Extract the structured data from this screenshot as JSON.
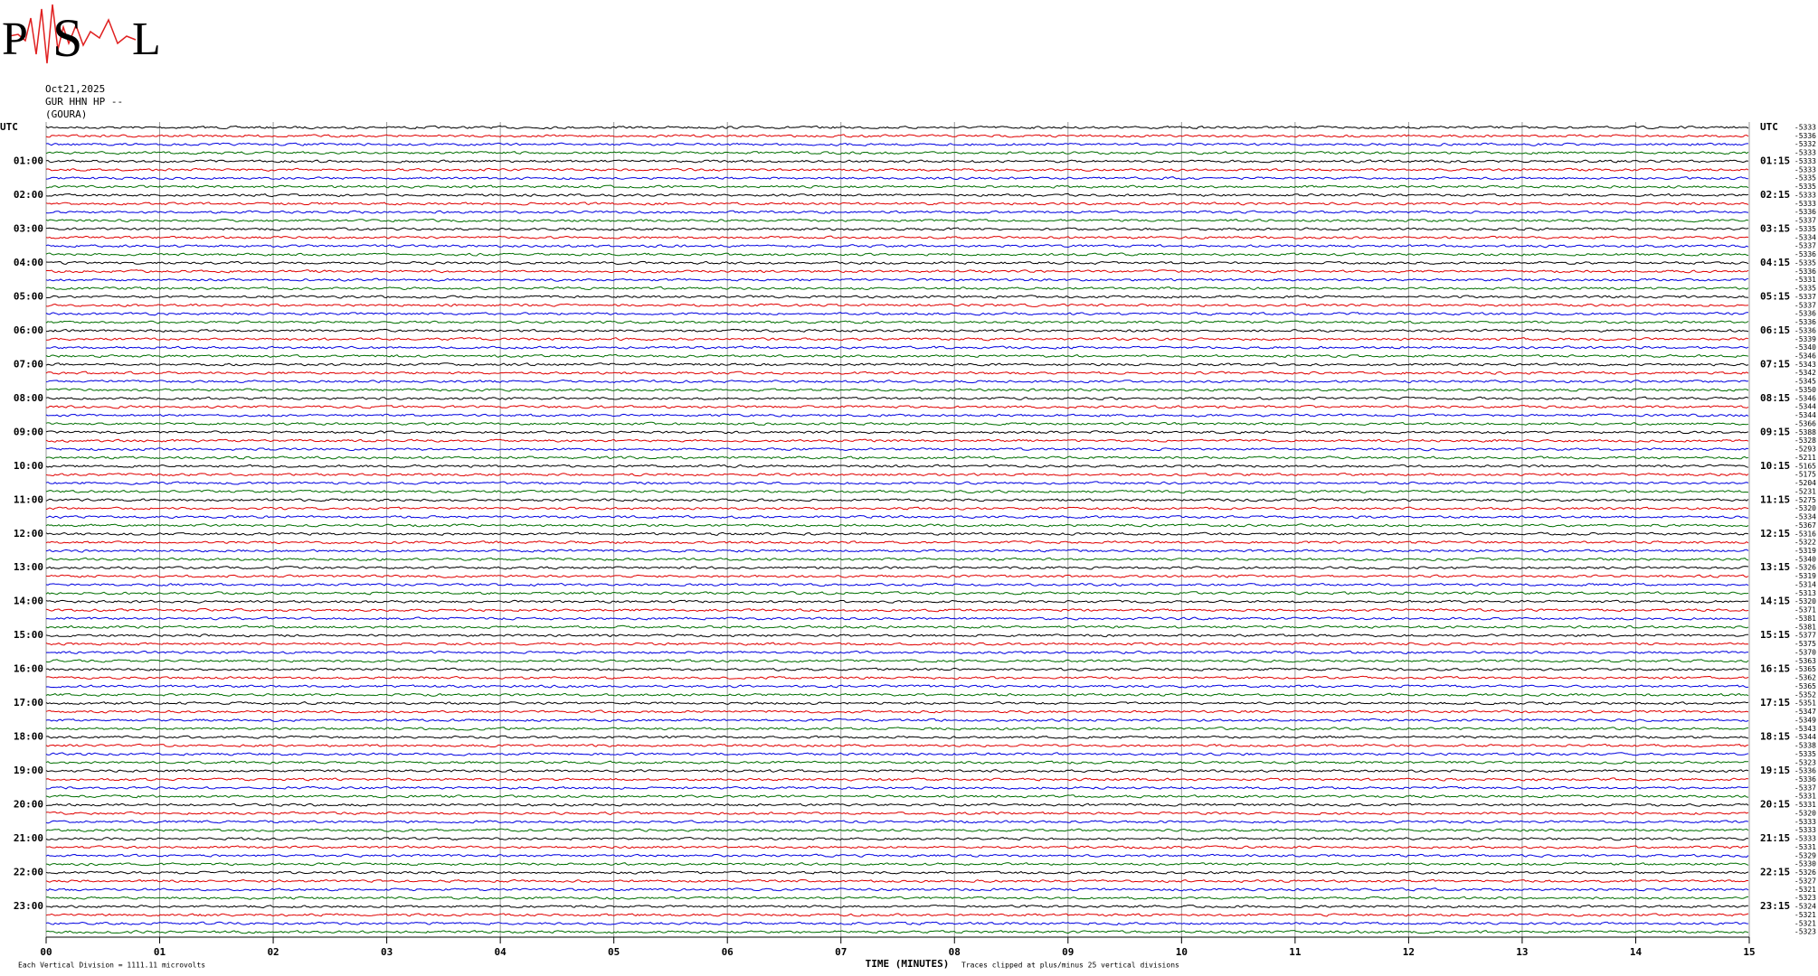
{
  "logo": {
    "letters": [
      "P",
      "S",
      "L"
    ]
  },
  "header": {
    "date": "Oct21,2025",
    "channel": "GUR HHN HP --",
    "station": "(GOURA)"
  },
  "left_labels": [
    "UTC",
    "01:00",
    "02:00",
    "03:00",
    "04:00",
    "05:00",
    "06:00",
    "07:00",
    "08:00",
    "09:00",
    "10:00",
    "11:00",
    "12:00",
    "13:00",
    "14:00",
    "15:00",
    "16:00",
    "17:00",
    "18:00",
    "19:00",
    "20:00",
    "21:00",
    "22:00",
    "23:00"
  ],
  "right_labels": [
    "UTC",
    "01:15",
    "02:15",
    "03:15",
    "04:15",
    "05:15",
    "06:15",
    "07:15",
    "08:15",
    "09:15",
    "10:15",
    "11:15",
    "12:15",
    "13:15",
    "14:15",
    "15:15",
    "16:15",
    "17:15",
    "18:15",
    "19:15",
    "20:15",
    "21:15",
    "22:15",
    "23:15"
  ],
  "row_values": [
    -5333,
    -5336,
    -5332,
    -5333,
    -5333,
    -5333,
    -5335,
    -5335,
    -5333,
    -5333,
    -5336,
    -5337,
    -5335,
    -5334,
    -5337,
    -5336,
    -5335,
    -5336,
    -5331,
    -5335,
    -5337,
    -5337,
    -5336,
    -5336,
    -5336,
    -5339,
    -5340,
    -5346,
    -5343,
    -5342,
    -5345,
    -5350,
    -5346,
    -5344,
    -5344,
    -5366,
    -5388,
    -5328,
    -5293,
    -5211,
    -5165,
    -5175,
    -5204,
    -5231,
    -5275,
    -5320,
    -5334,
    -5367,
    -5316,
    -5322,
    -5319,
    -5340,
    -5326,
    -5319,
    -5314,
    -5313,
    -5320,
    -5371,
    -5381,
    -5381,
    -5377,
    -5375,
    -5370,
    -5363,
    -5365,
    -5362,
    -5365,
    -5352,
    -5351,
    -5347,
    -5349,
    -5343,
    -5344,
    -5338,
    -5335,
    -5323,
    -5336,
    -5336,
    -5337,
    -5331,
    -5331,
    -5320,
    -5333,
    -5333,
    -5333,
    -5331,
    -5329,
    -5330,
    -5326,
    -5327,
    -5321,
    -5323,
    -5324,
    -5321,
    -5321,
    -5323
  ],
  "x_axis": {
    "ticks": [
      "00",
      "01",
      "02",
      "03",
      "04",
      "05",
      "06",
      "07",
      "08",
      "09",
      "10",
      "11",
      "12",
      "13",
      "14",
      "15"
    ],
    "label": "TIME (MINUTES)"
  },
  "footer": {
    "scale": "Each Vertical Division = 1111.11 microvolts",
    "clip": "Traces clipped at plus/minus 25 vertical divisions"
  }
}
